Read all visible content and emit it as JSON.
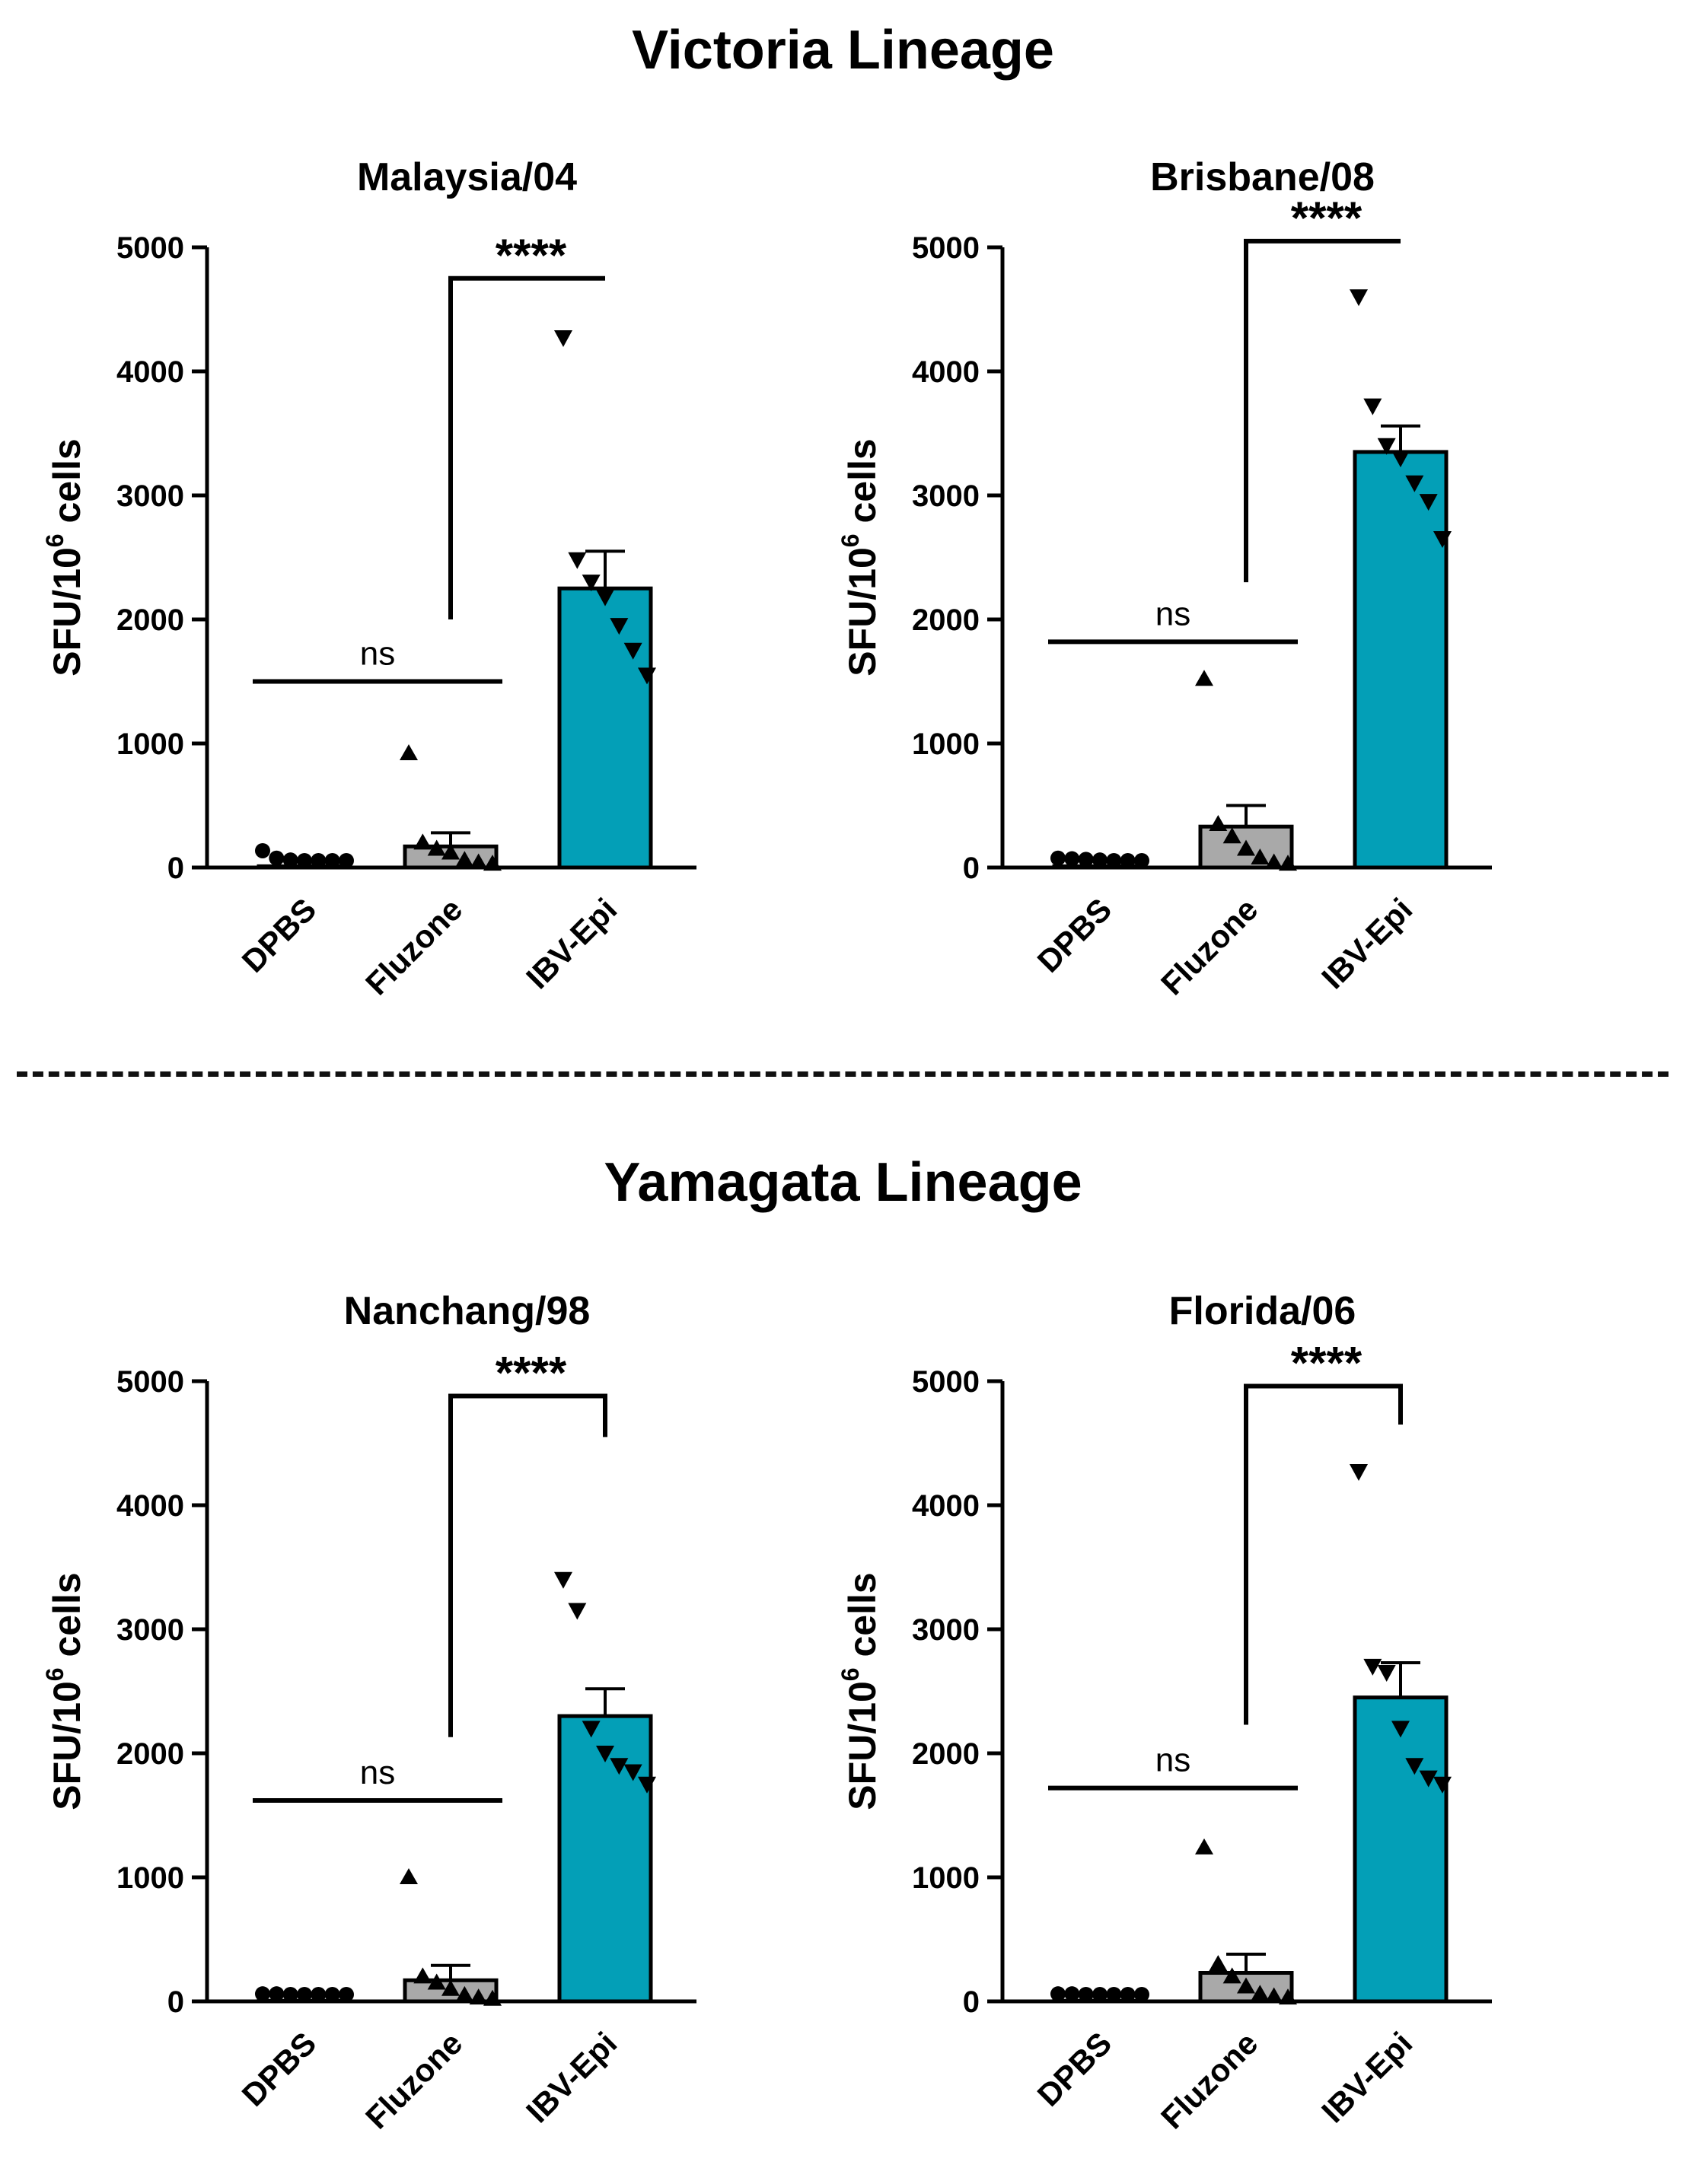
{
  "sections": {
    "victoria": "Victoria Lineage",
    "yamagata": "Yamagata Lineage"
  },
  "colors": {
    "ibv_bar": "#039fb7",
    "fluzone_bar": "#a9a9a9",
    "dpbs_bar": "#555555",
    "ink": "#000000"
  },
  "chart_data": [
    {
      "type": "bar",
      "title": "Malaysia/04",
      "ylabel": "SFU/10^6 cells",
      "ylabel_parts": [
        "SFU/10",
        "6",
        " cells"
      ],
      "xlabel": "",
      "ylim": [
        0,
        5000
      ],
      "yticks": [
        0,
        1000,
        2000,
        3000,
        4000,
        5000
      ],
      "categories": [
        "DPBS",
        "Fluzone",
        "IBV-Epi"
      ],
      "values": [
        10,
        170,
        2250
      ],
      "sem": [
        0,
        110,
        300
      ],
      "points": [
        [
          80,
          20,
          5,
          0,
          0,
          0,
          0
        ],
        [
          920,
          200,
          150,
          120,
          60,
          40,
          30
        ],
        [
          4270,
          2480,
          2300,
          2180,
          1950,
          1750,
          1550
        ]
      ],
      "markers": [
        "circle",
        "triangle-up",
        "triangle-down"
      ],
      "significance": [
        {
          "groups": [
            "DPBS",
            "Fluzone"
          ],
          "label": "ns",
          "level": 1500
        },
        {
          "groups": [
            "Fluzone",
            "IBV-Epi"
          ],
          "label": "****",
          "level": 4750,
          "left_end": 2000,
          "right_end": 4750
        }
      ]
    },
    {
      "type": "bar",
      "title": "Brisbane/08",
      "ylabel": "SFU/10^6 cells",
      "ylabel_parts": [
        "SFU/10",
        "6",
        " cells"
      ],
      "xlabel": "",
      "ylim": [
        0,
        5000
      ],
      "yticks": [
        0,
        1000,
        2000,
        3000,
        4000,
        5000
      ],
      "categories": [
        "DPBS",
        "Fluzone",
        "IBV-Epi"
      ],
      "values": [
        10,
        330,
        3350
      ],
      "sem": [
        0,
        170,
        210
      ],
      "points": [
        [
          20,
          15,
          10,
          5,
          0,
          0,
          0
        ],
        [
          1520,
          350,
          250,
          150,
          80,
          40,
          30
        ],
        [
          4600,
          3720,
          3400,
          3300,
          3100,
          2950,
          2650
        ]
      ],
      "markers": [
        "circle",
        "triangle-up",
        "triangle-down"
      ],
      "significance": [
        {
          "groups": [
            "DPBS",
            "Fluzone"
          ],
          "label": "ns",
          "level": 1820
        },
        {
          "groups": [
            "Fluzone",
            "IBV-Epi"
          ],
          "label": "****",
          "level": 5050,
          "left_end": 2300,
          "right_end": 5050
        }
      ]
    },
    {
      "type": "bar",
      "title": "Nanchang/98",
      "ylabel": "SFU/10^6 cells",
      "ylabel_parts": [
        "SFU/10",
        "6",
        " cells"
      ],
      "xlabel": "",
      "ylim": [
        0,
        5000
      ],
      "yticks": [
        0,
        1000,
        2000,
        3000,
        4000,
        5000
      ],
      "categories": [
        "DPBS",
        "Fluzone",
        "IBV-Epi"
      ],
      "values": [
        5,
        170,
        2300
      ],
      "sem": [
        0,
        120,
        220
      ],
      "points": [
        [
          5,
          5,
          0,
          0,
          0,
          0,
          0
        ],
        [
          1000,
          200,
          150,
          100,
          50,
          30,
          20
        ],
        [
          3400,
          3150,
          2200,
          2000,
          1900,
          1850,
          1750
        ]
      ],
      "markers": [
        "circle",
        "triangle-up",
        "triangle-down"
      ],
      "significance": [
        {
          "groups": [
            "DPBS",
            "Fluzone"
          ],
          "label": "ns",
          "level": 1620
        },
        {
          "groups": [
            "Fluzone",
            "IBV-Epi"
          ],
          "label": "****",
          "level": 4880,
          "left_end": 2130,
          "right_end": 4550
        }
      ]
    },
    {
      "type": "bar",
      "title": "Florida/06",
      "ylabel": "SFU/10^6 cells",
      "ylabel_parts": [
        "SFU/10",
        "6",
        " cells"
      ],
      "xlabel": "",
      "ylim": [
        0,
        5000
      ],
      "yticks": [
        0,
        1000,
        2000,
        3000,
        4000,
        5000
      ],
      "categories": [
        "DPBS",
        "Fluzone",
        "IBV-Epi"
      ],
      "values": [
        5,
        230,
        2450
      ],
      "sem": [
        0,
        150,
        280
      ],
      "points": [
        [
          5,
          5,
          0,
          0,
          0,
          0,
          0
        ],
        [
          1240,
          300,
          200,
          120,
          60,
          40,
          30
        ],
        [
          4270,
          2700,
          2650,
          2200,
          1900,
          1800,
          1750
        ]
      ],
      "markers": [
        "circle",
        "triangle-up",
        "triangle-down"
      ],
      "significance": [
        {
          "groups": [
            "DPBS",
            "Fluzone"
          ],
          "label": "ns",
          "level": 1720
        },
        {
          "groups": [
            "Fluzone",
            "IBV-Epi"
          ],
          "label": "****",
          "level": 4960,
          "left_end": 2230,
          "right_end": 4650
        }
      ]
    }
  ]
}
